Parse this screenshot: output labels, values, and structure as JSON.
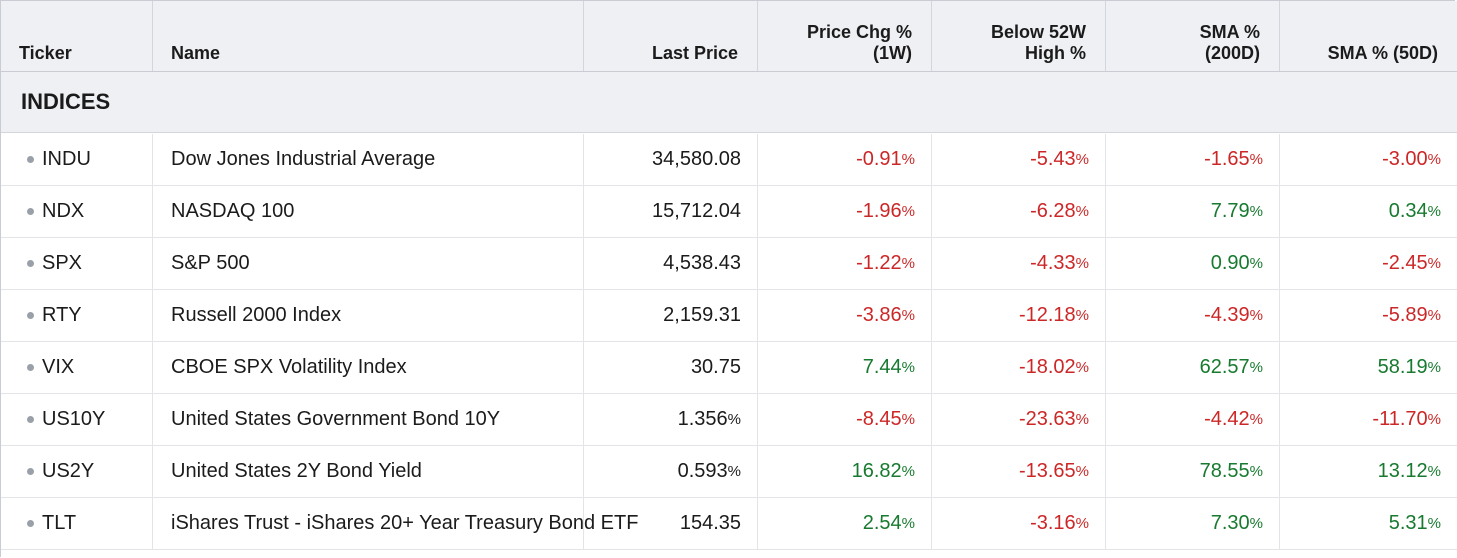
{
  "columns": {
    "ticker": "Ticker",
    "name": "Name",
    "last_price": "Last Price",
    "price_chg": "Price Chg %\n(1W)",
    "below_52w": "Below 52W\nHigh %",
    "sma_200": "SMA %\n(200D)",
    "sma_50": "SMA % (50D)"
  },
  "section_title": "INDICES",
  "pct_symbol": "%",
  "colors": {
    "negative": "#cc2727",
    "positive": "#177a2f",
    "header_bg": "#eff0f4"
  },
  "rows": [
    {
      "ticker": "INDU",
      "name": "Dow Jones Industrial Average",
      "last": "34,580.08",
      "last_pct": false,
      "chg": "-0.91",
      "below": "-5.43",
      "sma200": "-1.65",
      "sma50": "-3.00"
    },
    {
      "ticker": "NDX",
      "name": "NASDAQ 100",
      "last": "15,712.04",
      "last_pct": false,
      "chg": "-1.96",
      "below": "-6.28",
      "sma200": "7.79",
      "sma50": "0.34"
    },
    {
      "ticker": "SPX",
      "name": "S&P 500",
      "last": "4,538.43",
      "last_pct": false,
      "chg": "-1.22",
      "below": "-4.33",
      "sma200": "0.90",
      "sma50": "-2.45"
    },
    {
      "ticker": "RTY",
      "name": "Russell 2000 Index",
      "last": "2,159.31",
      "last_pct": false,
      "chg": "-3.86",
      "below": "-12.18",
      "sma200": "-4.39",
      "sma50": "-5.89"
    },
    {
      "ticker": "VIX",
      "name": "CBOE SPX Volatility Index",
      "last": "30.75",
      "last_pct": false,
      "chg": "7.44",
      "below": "-18.02",
      "sma200": "62.57",
      "sma50": "58.19"
    },
    {
      "ticker": "US10Y",
      "name": "United States Government Bond 10Y",
      "last": "1.356",
      "last_pct": true,
      "chg": "-8.45",
      "below": "-23.63",
      "sma200": "-4.42",
      "sma50": "-11.70"
    },
    {
      "ticker": "US2Y",
      "name": "United States 2Y Bond Yield",
      "last": "0.593",
      "last_pct": true,
      "chg": "16.82",
      "below": "-13.65",
      "sma200": "78.55",
      "sma50": "13.12"
    },
    {
      "ticker": "TLT",
      "name": "iShares Trust - iShares 20+ Year Treasury Bond ETF",
      "last": "154.35",
      "last_pct": false,
      "chg": "2.54",
      "below": "-3.16",
      "sma200": "7.30",
      "sma50": "5.31"
    }
  ]
}
